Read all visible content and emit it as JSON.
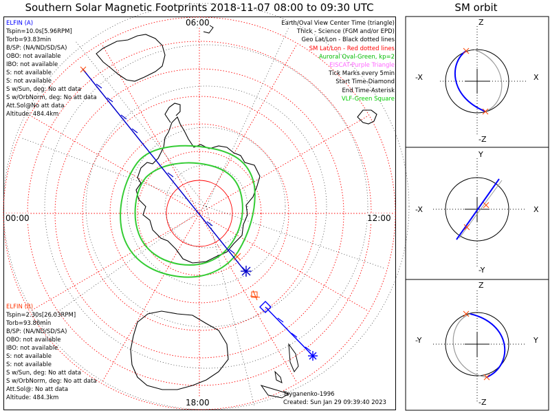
{
  "title": "Southern Solar Magnetic Footprints 2018-11-07 08:00 to 09:30 UTC",
  "orbit_title": "SM orbit",
  "mlt_labels": {
    "top": "06:00",
    "left": "00:00",
    "right": "12:00",
    "bottom": "18:00"
  },
  "elfin_a": {
    "name": "ELFIN (A)",
    "color": "#0000ff",
    "lines": [
      "Tspin=10.0s[5.96RPM]",
      "Torb=93.83min",
      "B/SP: (NA/ND/SD/SA)",
      "OBO: not available",
      "IBO: not available",
      "S: not available",
      "S: not available",
      "S w/Sun, deg: No att data",
      "S w/OrbNorm, deg: No att data",
      "Att.Sol@No att data",
      "Altitude: 484.4km"
    ]
  },
  "elfin_b": {
    "name": "ELFIN (B)",
    "color": "#ff3300",
    "lines": [
      "Tspin=2.30s[26.03RPM]",
      "Torb=93.86min",
      "B/SP: (NA/ND/SD/SA)",
      "OBO: not available",
      "IBO: not available",
      "S: not available",
      "S: not available",
      "S w/Sun, deg: No att data",
      "S w/OrbNorm, deg: No att data",
      "Att.Sol@: No att data",
      "Altitude: 484.3km"
    ]
  },
  "legend": [
    {
      "text": "Earth/Oval View Center Time (triangle)",
      "color": "#000000"
    },
    {
      "text": "Thick - Science (FGM and/or EPD)",
      "color": "#000000"
    },
    {
      "text": "Geo Lat/Lon - Black dotted lines",
      "color": "#000000"
    },
    {
      "text": "SM Lat/Lon - Red dotted lines",
      "color": "#ff0000"
    },
    {
      "text": "Auroral Oval-Green, kp=2",
      "color": "#00bb00"
    },
    {
      "text": "EISCAT-Purple Triangle",
      "color": "#ff66ff"
    },
    {
      "text": "Tick Marks every 5min",
      "color": "#000000"
    },
    {
      "text": "Start Time-Diamond",
      "color": "#000000"
    },
    {
      "text": "End Time-Asterisk",
      "color": "#000000"
    },
    {
      "text": "VLF-Green Square",
      "color": "#00cc00"
    }
  ],
  "credit": {
    "line1": "Tsyganenko-1996",
    "line2": "Created: Sun Jan 29 09:39:40 2023"
  },
  "orbit_panels": [
    {
      "top": "Z",
      "bottom": "-Z",
      "left": "-X",
      "right": "X"
    },
    {
      "top": "Y",
      "bottom": "-Y",
      "left": "-X",
      "right": "X"
    },
    {
      "top": "Z",
      "bottom": "-Z",
      "left": "-Y",
      "right": "Y"
    }
  ],
  "colors": {
    "sm_grid": "#ff0000",
    "geo_grid": "#000000",
    "oval": "#33cc33",
    "track_a": "#0000cc",
    "track_b": "#0000ff",
    "marker_b": "#ff4400"
  }
}
